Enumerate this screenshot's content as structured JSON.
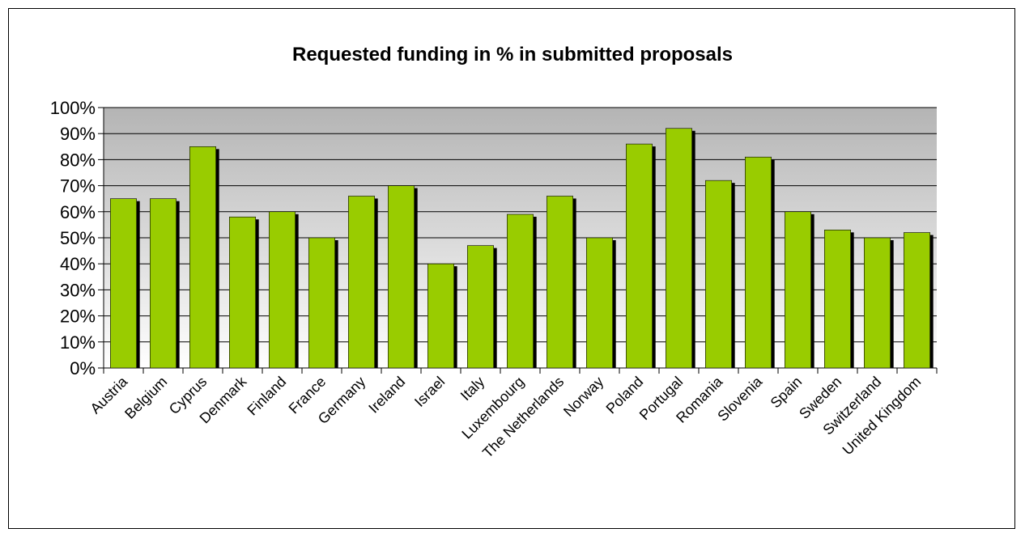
{
  "chart_data": {
    "type": "bar",
    "title": "Requested funding in % in submitted proposals",
    "xlabel": "",
    "ylabel": "",
    "categories": [
      "Austria",
      "Belgium",
      "Cyprus",
      "Denmark",
      "Finland",
      "France",
      "Germany",
      "Ireland",
      "Israel",
      "Italy",
      "Luxembourg",
      "The Netherlands",
      "Norway",
      "Poland",
      "Portugal",
      "Romania",
      "Slovenia",
      "Spain",
      "Sweden",
      "Switzerland",
      "United Kingdom"
    ],
    "values": [
      65,
      65,
      85,
      58,
      60,
      50,
      66,
      70,
      40,
      47,
      59,
      66,
      50,
      86,
      92,
      72,
      81,
      60,
      53,
      50,
      52
    ],
    "ylim": [
      0,
      100
    ],
    "yticks": [
      "0%",
      "10%",
      "20%",
      "30%",
      "40%",
      "50%",
      "60%",
      "70%",
      "80%",
      "90%",
      "100%"
    ],
    "grid": true,
    "legend": "none",
    "colors": {
      "bar": "#99cc00",
      "bar_shadow": "#000000",
      "plot_bg_top": "#b4b4b4",
      "plot_bg_bottom": "#ffffff",
      "gridline": "#000000"
    }
  }
}
